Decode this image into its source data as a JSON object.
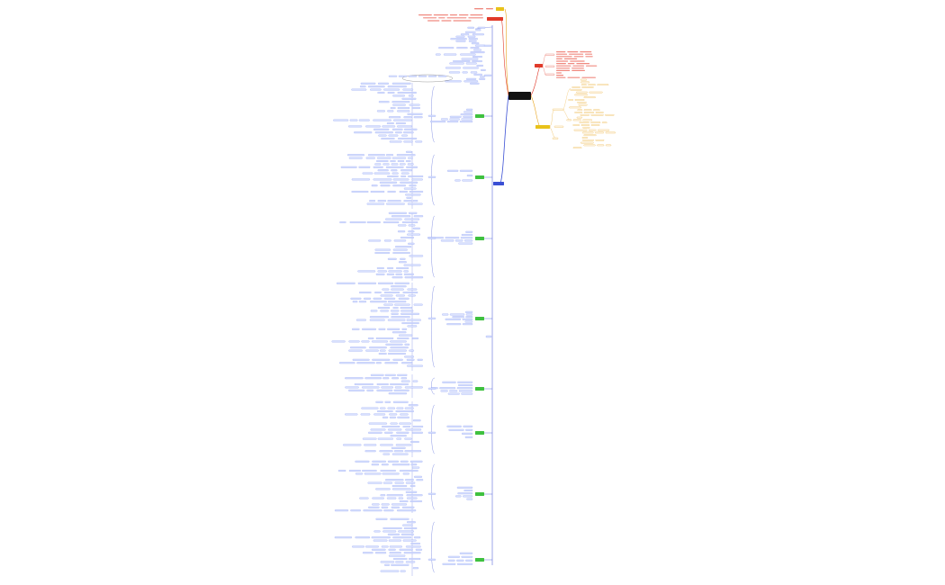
{
  "root": {
    "label": ""
  },
  "colors": {
    "blue_branch": "#3a4fd4",
    "blue_node_fill": "#dbe3ff",
    "blue_node_border": "#8c9cf0",
    "green_node": "#3fc13f",
    "orange_branch": "#e8a21a",
    "yellow_node": "#e8c21a",
    "red_branch": "#e03a2a",
    "pink_text": "#f08a80",
    "root_fill": "#111111"
  },
  "branches": [
    {
      "name": "top-yellow",
      "color": "#e8c21a",
      "label": ""
    },
    {
      "name": "top-red",
      "color": "#e03a2a",
      "label": ""
    },
    {
      "name": "blue-main",
      "color": "#3a4fd4",
      "label": ""
    },
    {
      "name": "right-red",
      "color": "#e03a2a",
      "label": ""
    },
    {
      "name": "right-orange",
      "color": "#e8a21a",
      "label": ""
    }
  ],
  "green_sections": [
    {
      "label": ""
    },
    {
      "label": ""
    },
    {
      "label": ""
    },
    {
      "label": ""
    },
    {
      "label": ""
    },
    {
      "label": ""
    },
    {
      "label": ""
    },
    {
      "label": ""
    }
  ]
}
